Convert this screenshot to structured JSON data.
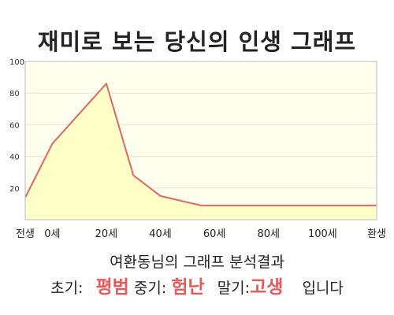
{
  "title": "재미로 보는 당신의 인생 그래프",
  "chart_data": {
    "type": "area",
    "x_labels": [
      "전생",
      "0세",
      "20세",
      "40세",
      "60세",
      "80세",
      "100세",
      "환생"
    ],
    "x": [
      -10,
      0,
      20,
      40,
      60,
      80,
      100,
      120
    ],
    "series": [
      {
        "points": [
          {
            "x": -10,
            "y": 14
          },
          {
            "x": 0,
            "y": 48
          },
          {
            "x": 20,
            "y": 86
          },
          {
            "x": 30,
            "y": 28
          },
          {
            "x": 40,
            "y": 15
          },
          {
            "x": 55,
            "y": 9
          },
          {
            "x": 120,
            "y": 9
          }
        ]
      }
    ],
    "y_ticks": [
      20,
      40,
      60,
      80,
      100
    ],
    "ylim": [
      0,
      100
    ],
    "xlim": [
      -10,
      120
    ],
    "grid": true,
    "colors": {
      "line": "#e06666",
      "fill": "#ffffc8",
      "grid": "#e8e8c8"
    }
  },
  "analysis": {
    "heading": "여환동님의 그래프 분석결과",
    "early_label": "초기:",
    "early_value": "평범",
    "mid_label": "중기:",
    "mid_value": "험난",
    "late_label": "말기:",
    "late_value": "고생",
    "suffix": "입니다"
  }
}
